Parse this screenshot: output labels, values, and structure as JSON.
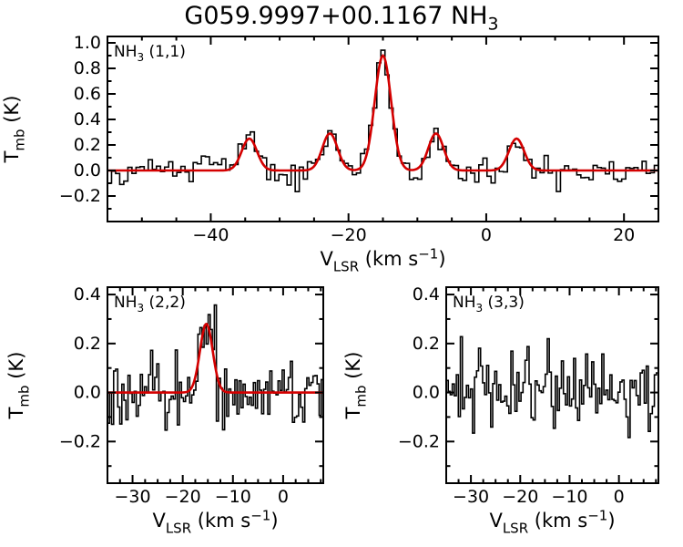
{
  "title": {
    "main": "G059.9997+00.1167 NH",
    "sub": "3"
  },
  "colors": {
    "background": "#ffffff",
    "data_line": "#000000",
    "fit_line": "#d40000",
    "axis": "#000000"
  },
  "chart_data": [
    {
      "type": "line",
      "panel_label": "NH3 (1,1)",
      "panel_label_parts": [
        {
          "t": "NH"
        },
        {
          "t": "3",
          "sub": true
        },
        {
          "t": " (1,1)"
        }
      ],
      "xlabel": "V_LSR (km s^-1)",
      "xlabel_parts": [
        {
          "t": "V"
        },
        {
          "t": "LSR",
          "sub": true
        },
        {
          "t": " (km s"
        },
        {
          "t": "−1",
          "sup": true
        },
        {
          "t": ")"
        }
      ],
      "ylabel": "T_mb (K)",
      "ylabel_parts": [
        {
          "t": "T"
        },
        {
          "t": "mb",
          "sub": true
        },
        {
          "t": " (K)"
        }
      ],
      "xlim": [
        -55,
        25
      ],
      "ylim": [
        -0.4,
        1.05
      ],
      "xticks": {
        "values": [
          -40,
          -20,
          0,
          20
        ],
        "labels": [
          "−40",
          "−20",
          "0",
          "20"
        ]
      },
      "yticks": {
        "values": [
          -0.2,
          0.0,
          0.2,
          0.4,
          0.6,
          0.8,
          1.0
        ],
        "labels": [
          "−0.2",
          "0.0",
          "0.2",
          "0.4",
          "0.6",
          "0.8",
          "1.0"
        ]
      },
      "x_minor_step": 5,
      "y_minor_step": 0.1,
      "grid": false,
      "n_channels": 135,
      "noise_sigma": 0.052,
      "has_fit": true,
      "fit_components": [
        {
          "center": -34.4,
          "amplitude": 0.25,
          "fwhm": 2.6
        },
        {
          "center": -22.7,
          "amplitude": 0.29,
          "fwhm": 2.6
        },
        {
          "center": -15.0,
          "amplitude": 0.9,
          "fwhm": 2.8
        },
        {
          "center": -7.3,
          "amplitude": 0.29,
          "fwhm": 2.6
        },
        {
          "center": 4.4,
          "amplitude": 0.25,
          "fwhm": 2.6
        }
      ]
    },
    {
      "type": "line",
      "panel_label": "NH3 (2,2)",
      "panel_label_parts": [
        {
          "t": "NH"
        },
        {
          "t": "3",
          "sub": true
        },
        {
          "t": " (2,2)"
        }
      ],
      "xlabel": "V_LSR (km s^-1)",
      "xlabel_parts": [
        {
          "t": "V"
        },
        {
          "t": "LSR",
          "sub": true
        },
        {
          "t": " (km s"
        },
        {
          "t": "−1",
          "sup": true
        },
        {
          "t": ")"
        }
      ],
      "ylabel": "T_mb (K)",
      "ylabel_parts": [
        {
          "t": "T"
        },
        {
          "t": "mb",
          "sub": true
        },
        {
          "t": " (K)"
        }
      ],
      "xlim": [
        -35,
        8
      ],
      "ylim": [
        -0.37,
        0.43
      ],
      "xticks": {
        "values": [
          -30,
          -20,
          -10,
          0
        ],
        "labels": [
          "−30",
          "−20",
          "−10",
          "0"
        ]
      },
      "yticks": {
        "values": [
          -0.2,
          0.0,
          0.2,
          0.4
        ],
        "labels": [
          "−0.2",
          "0.0",
          "0.2",
          "0.4"
        ]
      },
      "x_minor_step": 2.5,
      "y_minor_step": 0.1,
      "grid": false,
      "n_channels": 105,
      "noise_sigma": 0.075,
      "has_fit": true,
      "fit_components": [
        {
          "center": -15.3,
          "amplitude": 0.28,
          "fwhm": 3.0
        }
      ]
    },
    {
      "type": "line",
      "panel_label": "NH3 (3,3)",
      "panel_label_parts": [
        {
          "t": "NH"
        },
        {
          "t": "3",
          "sub": true
        },
        {
          "t": " (3,3)"
        }
      ],
      "xlabel": "V_LSR (km s^-1)",
      "xlabel_parts": [
        {
          "t": "V"
        },
        {
          "t": "LSR",
          "sub": true
        },
        {
          "t": " (km s"
        },
        {
          "t": "−1",
          "sup": true
        },
        {
          "t": ")"
        }
      ],
      "ylabel": "T_mb (K)",
      "ylabel_parts": [
        {
          "t": "T"
        },
        {
          "t": "mb",
          "sub": true
        },
        {
          "t": " (K)"
        }
      ],
      "xlim": [
        -35,
        8
      ],
      "ylim": [
        -0.37,
        0.43
      ],
      "xticks": {
        "values": [
          -30,
          -20,
          -10,
          0
        ],
        "labels": [
          "−30",
          "−20",
          "−10",
          "0"
        ]
      },
      "yticks": {
        "values": [
          -0.2,
          0.0,
          0.2,
          0.4
        ],
        "labels": [
          "−0.2",
          "0.0",
          "0.2",
          "0.4"
        ]
      },
      "x_minor_step": 2.5,
      "y_minor_step": 0.1,
      "grid": false,
      "n_channels": 105,
      "noise_sigma": 0.075,
      "has_fit": false,
      "fit_components": []
    }
  ]
}
